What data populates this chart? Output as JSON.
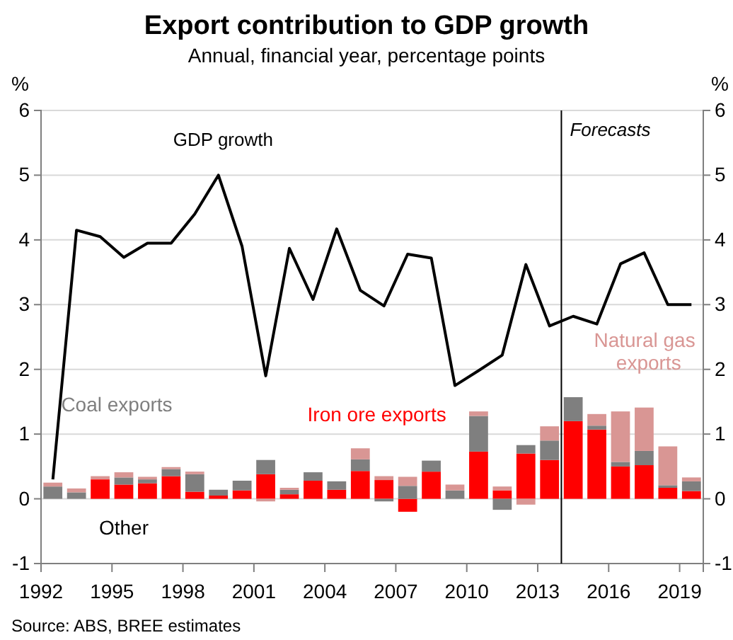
{
  "chart_data": {
    "type": "bar",
    "stacked": true,
    "title": "Export contribution to GDP growth",
    "subtitle": "Annual, financial year, percentage points",
    "ylabel": "%",
    "y2label": "%",
    "x": [
      1992.5,
      1993.5,
      1994.5,
      1995.5,
      1996.5,
      1997.5,
      1998.5,
      1999.5,
      2000.5,
      2001.5,
      2002.5,
      2003.5,
      2004.5,
      2005.5,
      2006.5,
      2007.5,
      2008.5,
      2009.5,
      2010.5,
      2011.5,
      2012.5,
      2013.5,
      2014.5,
      2015.5,
      2016.5,
      2017.5,
      2018.5,
      2019.5
    ],
    "xlim": [
      1992,
      2020
    ],
    "xticks": [
      1992,
      1995,
      1998,
      2001,
      2004,
      2007,
      2010,
      2013,
      2016,
      2019
    ],
    "ylim": [
      -1,
      6
    ],
    "yticks": [
      -1,
      0,
      1,
      2,
      3,
      4,
      5,
      6
    ],
    "y2lim": [
      -1,
      6
    ],
    "y2ticks": [
      -1,
      0,
      1,
      2,
      3,
      4,
      5,
      6
    ],
    "grid": "y",
    "series": [
      {
        "name": "Iron ore exports",
        "color": "#ff0000",
        "values": [
          0,
          0,
          0.3,
          0.22,
          0.24,
          0.35,
          0.11,
          0.05,
          0.13,
          0.38,
          0.07,
          0.28,
          0.14,
          0.43,
          0.29,
          -0.2,
          0.42,
          0,
          0.73,
          0.13,
          0.7,
          0.6,
          1.2,
          1.07,
          0.5,
          0.52,
          0.17,
          0.12
        ]
      },
      {
        "name": "Coal exports",
        "color": "#7f7f7f",
        "values": [
          0.19,
          0.1,
          0,
          0.11,
          0.06,
          0.11,
          0.27,
          0.09,
          0.15,
          0.22,
          0.07,
          0.13,
          0.13,
          0.18,
          -0.04,
          0.2,
          0.17,
          0.13,
          0.55,
          -0.17,
          0.13,
          0.3,
          0.37,
          0.06,
          0.07,
          0.22,
          0.04,
          0.15
        ]
      },
      {
        "name": "Natural gas exports",
        "color": "#d99694",
        "values": [
          0.06,
          0.06,
          0.05,
          0.08,
          0.04,
          0.03,
          0.04,
          0,
          0,
          -0.04,
          0.03,
          0,
          0,
          0.17,
          0.06,
          0.14,
          0,
          0.09,
          0.07,
          0.06,
          -0.09,
          0.22,
          0,
          0.18,
          0.78,
          0.67,
          0.6,
          0.06
        ]
      },
      {
        "name": "GDP growth",
        "type": "line",
        "color": "#000000",
        "values": [
          0.3,
          4.15,
          4.05,
          3.73,
          3.95,
          3.95,
          4.4,
          5.0,
          3.9,
          1.9,
          3.87,
          3.08,
          4.17,
          3.22,
          2.98,
          3.78,
          3.72,
          1.75,
          1.98,
          2.22,
          3.62,
          2.67,
          2.82,
          2.7,
          3.63,
          3.8,
          3.0,
          3.0
        ]
      }
    ],
    "ref_lines": [
      {
        "axis": "x",
        "value": 2014,
        "label": "Forecasts",
        "color": "#000000"
      }
    ],
    "annotations": [
      "Other",
      "Source: ABS, BREE estimates"
    ]
  }
}
